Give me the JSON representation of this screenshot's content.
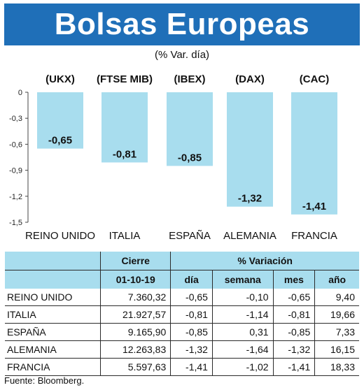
{
  "header": {
    "title": "Bolsas Europeas",
    "subtitle": "(% Var. día)"
  },
  "chart_data": {
    "type": "bar",
    "series_codes": [
      "(UKX)",
      "(FTSE MIB)",
      "(IBEX)",
      "(DAX)",
      "(CAC)"
    ],
    "categories": [
      "REINO UNIDO",
      "ITALIA",
      "ESPAÑA",
      "ALEMANIA",
      "FRANCIA"
    ],
    "values": [
      -0.65,
      -0.81,
      -0.85,
      -1.32,
      -1.41
    ],
    "value_labels": [
      "-0,65",
      "-0,81",
      "-0,85",
      "-1,32",
      "-1,41"
    ],
    "yticks": [
      "0",
      "-0,3",
      "-0,6",
      "-0,9",
      "-1,2",
      "-1,5"
    ],
    "ytick_values": [
      0,
      -0.3,
      -0.6,
      -0.9,
      -1.2,
      -1.5
    ],
    "ylim": [
      -1.5,
      0
    ],
    "bar_color": "#a8ddee",
    "grid": false
  },
  "table": {
    "header_cierre": "Cierre",
    "header_variacion": "% Variación",
    "header_date": "01-10-19",
    "columns": [
      "día",
      "semana",
      "mes",
      "año"
    ],
    "rows": [
      {
        "name": "REINO UNIDO",
        "cierre": "7.360,32",
        "dia": "-0,65",
        "semana": "-0,10",
        "mes": "-0,65",
        "ano": "9,40"
      },
      {
        "name": "ITALIA",
        "cierre": "21.927,57",
        "dia": "-0,81",
        "semana": "-1,14",
        "mes": "-0,81",
        "ano": "19,66"
      },
      {
        "name": "ESPAÑA",
        "cierre": "9.165,90",
        "dia": "-0,85",
        "semana": "0,31",
        "mes": "-0,85",
        "ano": "7,33"
      },
      {
        "name": "ALEMANIA",
        "cierre": "12.263,83",
        "dia": "-1,32",
        "semana": "-1,64",
        "mes": "-1,32",
        "ano": "16,15"
      },
      {
        "name": "FRANCIA",
        "cierre": "5.597,63",
        "dia": "-1,41",
        "semana": "-1,02",
        "mes": "-1,41",
        "ano": "18,33"
      }
    ]
  },
  "source": "Fuente: Bloomberg.",
  "colors": {
    "banner": "#1f6fb8",
    "header_fill": "#a8ddee"
  }
}
